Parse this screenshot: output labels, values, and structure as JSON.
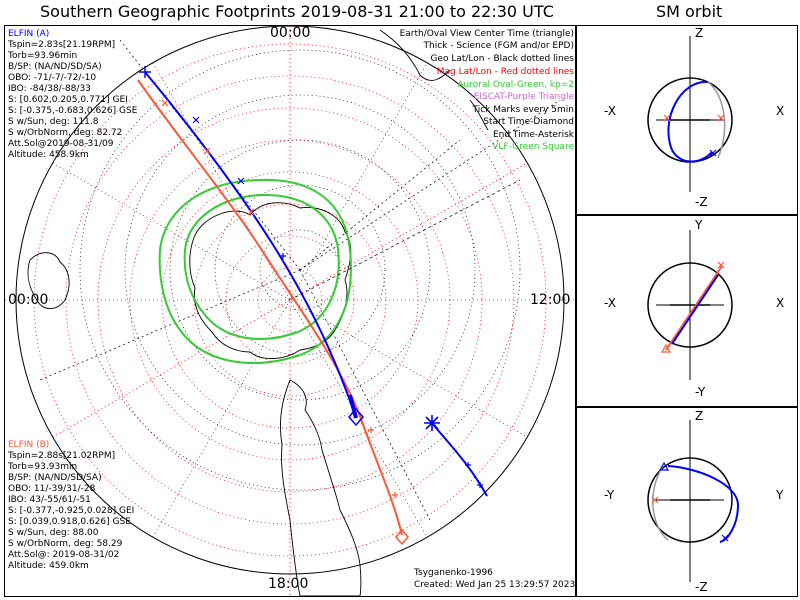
{
  "title": "Southern Geographic Footprints 2019-08-31 21:00 to 22:30 UTC",
  "sm_title": "SM orbit",
  "mlt_labels": {
    "top": "00:00",
    "left": "00:00",
    "right": "12:00",
    "bottom": "18:00"
  },
  "elfin_a": {
    "name": "ELFIN (A)",
    "lines": [
      "Tspin=2.83s[21.19RPM]",
      "Torb=93.96min",
      "B/SP: (NA/ND/SD/SA)",
      "OBO: -71/-7/-72/-10",
      "IBO: -84/38/-88/33",
      "S: [0.602,0.205,0.771] GEI",
      "S: [-0.375,-0.683,0.626] GSE",
      "S w/Sun, deg: 111.8",
      "S w/OrbNorm, deg: 82.72",
      "Att.Sol@2019-08-31/09",
      "Altitude: 458.9km"
    ]
  },
  "elfin_b": {
    "name": "ELFIN (B)",
    "lines": [
      "Tspin=2.88s[21.02RPM]",
      "Torb=93.93min",
      "B/SP: (NA/ND/SD/SA)",
      "OBO: 11/-39/31/-28",
      "IBO: 43/-55/61/-51",
      "S: [-0.377,-0.925,0.028] GEI",
      "S: [0.039,0.918,0.626] GSE",
      "S w/Sun, deg: 88.00",
      "S w/OrbNorm, deg: 58.29",
      "Att.Sol@: 2019-08-31/02",
      "Altitude: 459.0km"
    ]
  },
  "legend": [
    {
      "text": "Earth/Oval View Center Time (triangle)",
      "color": "#000000"
    },
    {
      "text": "Thick - Science (FGM and/or EPD)",
      "color": "#000000"
    },
    {
      "text": "Geo Lat/Lon - Black dotted lines",
      "color": "#000000"
    },
    {
      "text": "Mag Lat/Lon - Red dotted lines",
      "color": "#ff0000"
    },
    {
      "text": "Auroral Oval-Green, kp=2",
      "color": "#33cc33"
    },
    {
      "text": "EISCAT-Purple Triangle",
      "color": "#cc66cc"
    },
    {
      "text": "Tick Marks every 5min",
      "color": "#000000"
    },
    {
      "text": "Start Time-Diamond",
      "color": "#000000"
    },
    {
      "text": "End Time-Asterisk",
      "color": "#000000"
    },
    {
      "text": "VLF-Green Square",
      "color": "#33cc33"
    }
  ],
  "footer": {
    "model": "Tsyganenko-1996",
    "created": "Created: Wed Jan 25 13:29:57 2023"
  },
  "sm_panels": {
    "xz": {
      "top": "Z",
      "bottom": "-Z",
      "left": "-X",
      "right": "X"
    },
    "xy": {
      "top": "Y",
      "bottom": "-Y",
      "left": "-X",
      "right": "X"
    },
    "yz": {
      "top": "Z",
      "bottom": "-Z",
      "left": "-Y",
      "right": "Y"
    }
  },
  "colors": {
    "elfin_a": "#0000ff",
    "elfin_b": "#ff4422",
    "mag_grid": "#ff0000",
    "geo_grid": "#000000",
    "auroral_oval": "#33cc33"
  }
}
